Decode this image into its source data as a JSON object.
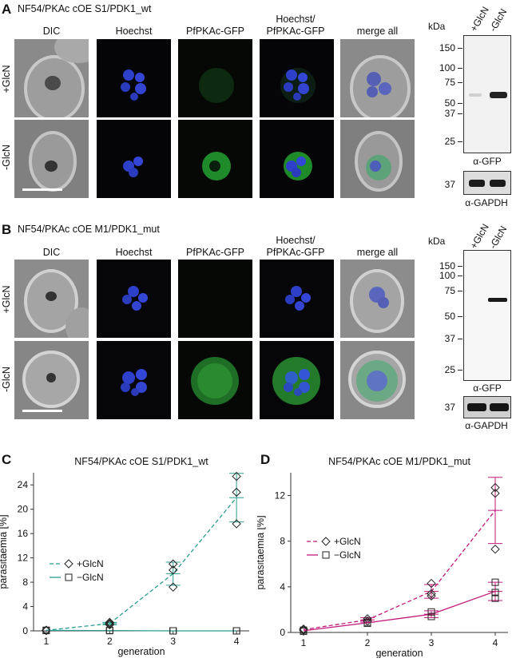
{
  "panels": {
    "A": {
      "letter": "A",
      "title": "NF54/PKAc cOE S1/PDK1_wt",
      "columns": [
        "DIC",
        "Hoechst",
        "PfPKAc-GFP",
        "Hoechst/\nPfPKAc-GFP",
        "merge all"
      ],
      "rows": [
        "+GlcN",
        "-GlcN"
      ],
      "blot": {
        "unit": "kDa",
        "lanes": [
          "+GlcN",
          "-GlcN"
        ],
        "markers": [
          "150",
          "100",
          "75",
          "50",
          "37",
          "25"
        ],
        "antibody_top": "α-GFP",
        "marker_bottom": "37",
        "antibody_bottom": "α-GAPDH"
      }
    },
    "B": {
      "letter": "B",
      "title": "NF54/PKAc cOE M1/PDK1_mut",
      "columns": [
        "DIC",
        "Hoechst",
        "PfPKAc-GFP",
        "Hoechst/\nPfPKAc-GFP",
        "merge all"
      ],
      "rows": [
        "+GlcN",
        "-GlcN"
      ],
      "blot": {
        "unit": "kDa",
        "lanes": [
          "+GlcN",
          "-GlcN"
        ],
        "markers": [
          "150",
          "100",
          "75",
          "50",
          "37",
          "25"
        ],
        "antibody_top": "α-GFP",
        "marker_bottom": "37",
        "antibody_bottom": "α-GAPDH"
      }
    },
    "C": {
      "letter": "C"
    },
    "D": {
      "letter": "D"
    }
  },
  "chart_data": [
    {
      "type": "line",
      "title": "NF54/PKAc cOE S1/PDK1_wt",
      "xlabel": "generation",
      "ylabel": "parasitaemia [%]",
      "x": [
        1,
        2,
        3,
        4
      ],
      "xticks": [
        "1",
        "2",
        "3",
        "4"
      ],
      "yticks": [
        "0",
        "4",
        "8",
        "12",
        "16",
        "20",
        "24"
      ],
      "ylim": [
        0,
        26
      ],
      "color": "#2a9d8f",
      "legend_position": "middle-left",
      "series": [
        {
          "name": "+GlcN",
          "marker": "diamond",
          "line": "dashed",
          "points": [
            [
              1,
              0.05
            ],
            [
              1,
              0.1
            ],
            [
              1,
              0.1
            ],
            [
              2,
              1.4
            ],
            [
              2,
              1.2
            ],
            [
              2,
              1.0
            ],
            [
              3,
              11.0
            ],
            [
              3,
              10.0
            ],
            [
              3,
              7.2
            ],
            [
              4,
              25.4
            ],
            [
              4,
              22.8
            ],
            [
              4,
              17.6
            ]
          ],
          "mean": [
            0.08,
            1.2,
            9.4,
            21.9
          ],
          "sd": [
            0.05,
            0.2,
            1.9,
            4.0
          ]
        },
        {
          "name": "−GlcN",
          "marker": "square",
          "line": "solid",
          "points": [
            [
              1,
              0.05
            ],
            [
              1,
              0.1
            ],
            [
              2,
              0.05
            ],
            [
              2,
              0.05
            ],
            [
              3,
              0.0
            ],
            [
              3,
              0.0
            ],
            [
              4,
              0.0
            ],
            [
              4,
              0.0
            ]
          ],
          "mean": [
            0.08,
            0.05,
            0.0,
            0.0
          ],
          "sd": [
            0.03,
            0.02,
            0.0,
            0.0
          ]
        }
      ]
    },
    {
      "type": "line",
      "title": "NF54/PKAc cOE M1/PDK1_mut",
      "xlabel": "generation",
      "ylabel": "parasitaemia [%]",
      "x": [
        1,
        2,
        3,
        4
      ],
      "xticks": [
        "1",
        "2",
        "3",
        "4"
      ],
      "yticks": [
        "0",
        "4",
        "8",
        "12"
      ],
      "ylim": [
        0,
        14
      ],
      "color": "#c2187a",
      "legend_position": "middle-left",
      "series": [
        {
          "name": "+GlcN",
          "marker": "diamond",
          "line": "dashed",
          "points": [
            [
              1,
              0.3
            ],
            [
              1,
              0.2
            ],
            [
              2,
              1.2
            ],
            [
              2,
              1.0
            ],
            [
              3,
              4.3
            ],
            [
              3,
              3.4
            ],
            [
              3,
              3.2
            ],
            [
              4,
              12.7
            ],
            [
              4,
              12.2
            ],
            [
              4,
              7.3
            ]
          ],
          "mean": [
            0.25,
            1.1,
            3.6,
            10.7
          ],
          "sd": [
            0.1,
            0.2,
            0.6,
            2.9
          ]
        },
        {
          "name": "−GlcN",
          "marker": "square",
          "line": "solid",
          "points": [
            [
              1,
              0.1
            ],
            [
              1,
              0.2
            ],
            [
              2,
              0.9
            ],
            [
              2,
              0.8
            ],
            [
              3,
              1.8
            ],
            [
              3,
              1.4
            ],
            [
              4,
              4.4
            ],
            [
              4,
              3.5
            ],
            [
              4,
              3.0
            ]
          ],
          "mean": [
            0.15,
            0.85,
            1.6,
            3.6
          ],
          "sd": [
            0.05,
            0.1,
            0.3,
            0.8
          ]
        }
      ]
    }
  ]
}
